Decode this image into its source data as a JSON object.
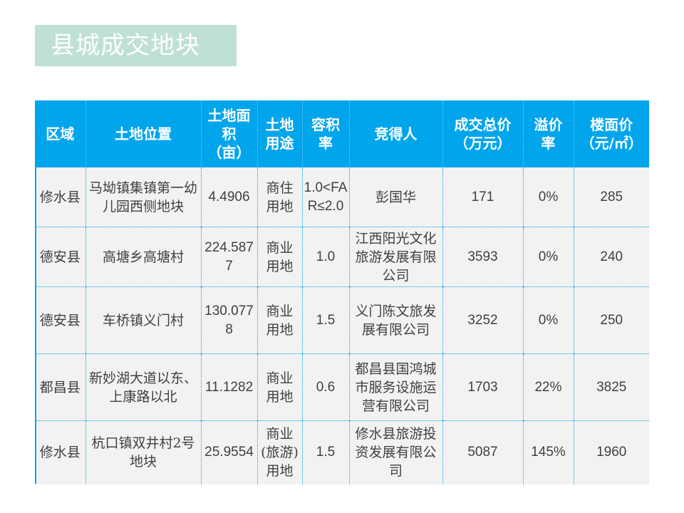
{
  "page": {
    "title": "县城成交地块"
  },
  "table": {
    "headers": [
      "区域",
      "土地位置",
      "土地面积（亩）",
      "土地用途",
      "容积率",
      "竞得人",
      "成交总价（万元）",
      "溢价率",
      "楼面价（元/㎡）"
    ],
    "rows": [
      [
        "修水县",
        "马坳镇集镇第一幼儿园西侧地块",
        "4.4906",
        "商住用地",
        "1.0<FAR≤2.0",
        "彭国华",
        "171",
        "0%",
        "285"
      ],
      [
        "德安县",
        "高塘乡高塘村",
        "224.5877",
        "商业用地",
        "1.0",
        "江西阳光文化旅游发展有限公司",
        "3593",
        "0%",
        "240"
      ],
      [
        "德安县",
        "车桥镇义门村",
        "130.0778",
        "商业用地",
        "1.5",
        "义门陈文旅发展有限公司",
        "3252",
        "0%",
        "250"
      ],
      [
        "都昌县",
        "新妙湖大道以东、上康路以北",
        "11.1282",
        "商业用地",
        "0.6",
        "都昌县国鸿城市服务设施运营有限公司",
        "1703",
        "22%",
        "3825"
      ],
      [
        "修水县",
        "杭口镇双井村2号地块",
        "25.9554",
        "商业(旅游)用地",
        "1.5",
        "修水县旅游投资发展有限公司",
        "5087",
        "145%",
        "1960"
      ]
    ]
  }
}
